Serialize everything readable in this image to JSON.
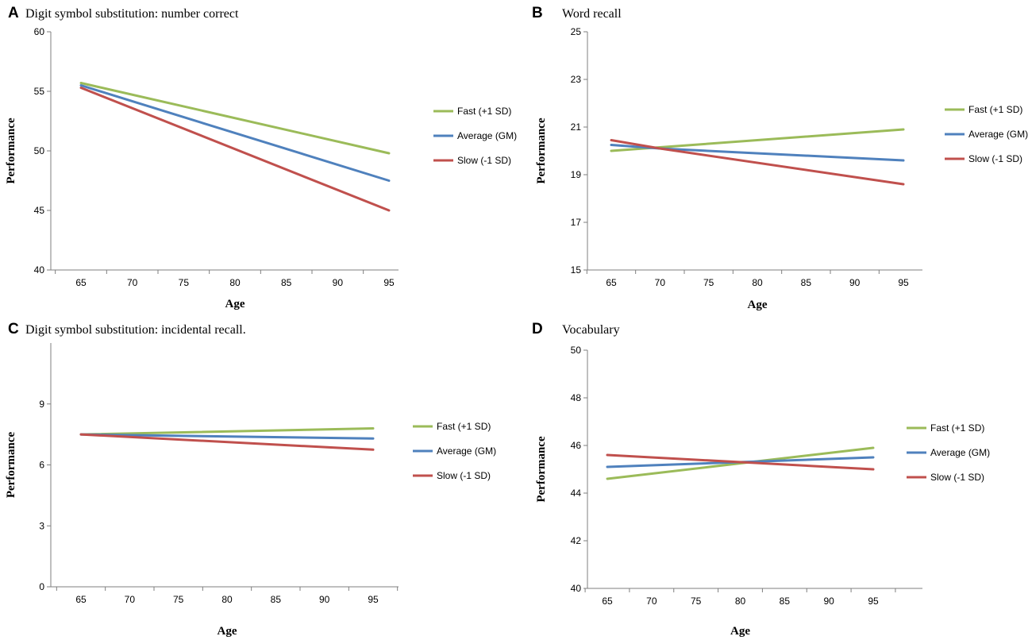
{
  "chart_data": [
    {
      "panel": "A",
      "type": "line",
      "title": "Digit symbol substitution: number correct",
      "xlabel": "Age",
      "ylabel": "Performance",
      "x": [
        65,
        95
      ],
      "xticks": [
        "65",
        "70",
        "75",
        "80",
        "85",
        "90",
        "95"
      ],
      "yticks": [
        "40",
        "45",
        "50",
        "55",
        "60"
      ],
      "ylim": [
        40,
        60
      ],
      "series": [
        {
          "name": "Fast (+1 SD)",
          "color": "#9bbb59",
          "values": [
            55.7,
            49.8
          ]
        },
        {
          "name": "Average (GM)",
          "color": "#4f81bd",
          "values": [
            55.5,
            47.5
          ]
        },
        {
          "name": "Slow (-1 SD)",
          "color": "#c0504d",
          "values": [
            55.3,
            45.0
          ]
        }
      ]
    },
    {
      "panel": "B",
      "type": "line",
      "title": "Word recall",
      "xlabel": "Age",
      "ylabel": "Performance",
      "x": [
        65,
        70,
        95
      ],
      "xticks": [
        "65",
        "70",
        "75",
        "80",
        "85",
        "90",
        "95"
      ],
      "yticks": [
        "15",
        "17",
        "19",
        "21",
        "23",
        "25"
      ],
      "ylim": [
        15,
        25
      ],
      "series": [
        {
          "name": "Fast (+1 SD)",
          "color": "#9bbb59",
          "values": [
            20.0,
            20.15,
            20.9
          ]
        },
        {
          "name": "Average (GM)",
          "color": "#4f81bd",
          "values": [
            20.25,
            20.1,
            19.6
          ]
        },
        {
          "name": "Slow (-1 SD)",
          "color": "#c0504d",
          "values": [
            20.45,
            20.1,
            18.6
          ]
        }
      ]
    },
    {
      "panel": "C",
      "type": "line",
      "title": "Digit symbol substitution: incidental recall.",
      "xlabel": "Age",
      "ylabel": "Performance",
      "x": [
        65,
        95
      ],
      "xticks": [
        "65",
        "70",
        "75",
        "80",
        "85",
        "90",
        "95"
      ],
      "yticks": [
        "0",
        "3",
        "6",
        "9"
      ],
      "ylim": [
        0,
        12
      ],
      "series": [
        {
          "name": "Fast (+1 SD)",
          "color": "#9bbb59",
          "values": [
            7.5,
            7.8
          ]
        },
        {
          "name": "Average (GM)",
          "color": "#4f81bd",
          "values": [
            7.5,
            7.3
          ]
        },
        {
          "name": "Slow (-1 SD)",
          "color": "#c0504d",
          "values": [
            7.5,
            6.75
          ]
        }
      ]
    },
    {
      "panel": "D",
      "type": "line",
      "title": "Vocabulary",
      "xlabel": "Age",
      "ylabel": "Performance",
      "x": [
        65,
        95
      ],
      "xticks": [
        "65",
        "70",
        "75",
        "80",
        "85",
        "90",
        "95"
      ],
      "yticks": [
        "40",
        "42",
        "44",
        "46",
        "48",
        "50"
      ],
      "ylim": [
        40,
        50
      ],
      "series": [
        {
          "name": "Fast (+1 SD)",
          "color": "#9bbb59",
          "values": [
            44.6,
            45.9
          ]
        },
        {
          "name": "Average (GM)",
          "color": "#4f81bd",
          "values": [
            45.1,
            45.5
          ]
        },
        {
          "name": "Slow (-1 SD)",
          "color": "#c0504d",
          "values": [
            45.6,
            45.0
          ]
        }
      ]
    }
  ]
}
